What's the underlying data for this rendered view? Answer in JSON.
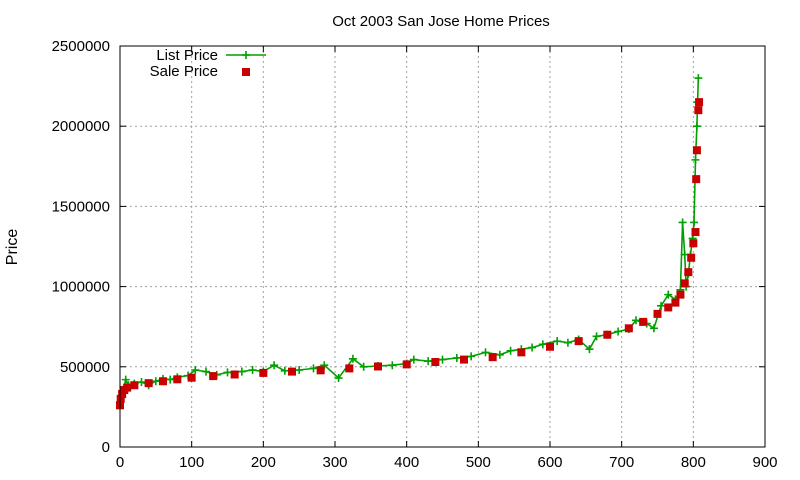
{
  "chart_data": {
    "type": "scatter",
    "title": "Oct 2003 San Jose Home Prices",
    "xlabel": "",
    "ylabel": "Price",
    "xlim": [
      0,
      900
    ],
    "ylim": [
      0,
      2500000
    ],
    "x_ticks": [
      0,
      100,
      200,
      300,
      400,
      500,
      600,
      700,
      800,
      900
    ],
    "y_ticks": [
      0,
      500000,
      1000000,
      1500000,
      2000000,
      2500000
    ],
    "grid": true,
    "legend_position": "top-left",
    "series": [
      {
        "name": "List Price",
        "style": "linespoints",
        "marker": "plus",
        "color": "#00a000",
        "points": [
          [
            0,
            280000
          ],
          [
            2,
            320000
          ],
          [
            5,
            360000
          ],
          [
            8,
            420000
          ],
          [
            12,
            385000
          ],
          [
            20,
            395000
          ],
          [
            30,
            405000
          ],
          [
            40,
            385000
          ],
          [
            50,
            410000
          ],
          [
            60,
            425000
          ],
          [
            70,
            420000
          ],
          [
            80,
            435000
          ],
          [
            95,
            445000
          ],
          [
            105,
            480000
          ],
          [
            120,
            470000
          ],
          [
            135,
            450000
          ],
          [
            150,
            465000
          ],
          [
            170,
            470000
          ],
          [
            185,
            480000
          ],
          [
            200,
            470000
          ],
          [
            215,
            510000
          ],
          [
            230,
            475000
          ],
          [
            250,
            480000
          ],
          [
            270,
            490000
          ],
          [
            285,
            510000
          ],
          [
            305,
            430000
          ],
          [
            325,
            550000
          ],
          [
            340,
            500000
          ],
          [
            360,
            505000
          ],
          [
            380,
            510000
          ],
          [
            400,
            520000
          ],
          [
            410,
            545000
          ],
          [
            430,
            535000
          ],
          [
            450,
            545000
          ],
          [
            470,
            555000
          ],
          [
            490,
            565000
          ],
          [
            510,
            590000
          ],
          [
            530,
            575000
          ],
          [
            545,
            600000
          ],
          [
            560,
            610000
          ],
          [
            575,
            620000
          ],
          [
            590,
            640000
          ],
          [
            610,
            660000
          ],
          [
            625,
            650000
          ],
          [
            640,
            670000
          ],
          [
            655,
            610000
          ],
          [
            665,
            690000
          ],
          [
            680,
            700000
          ],
          [
            695,
            720000
          ],
          [
            710,
            735000
          ],
          [
            720,
            790000
          ],
          [
            735,
            770000
          ],
          [
            745,
            740000
          ],
          [
            755,
            880000
          ],
          [
            765,
            950000
          ],
          [
            775,
            920000
          ],
          [
            782,
            980000
          ],
          [
            785,
            1400000
          ],
          [
            788,
            1200000
          ],
          [
            790,
            1000000
          ],
          [
            793,
            1080000
          ],
          [
            796,
            1200000
          ],
          [
            799,
            1300000
          ],
          [
            801,
            1400000
          ],
          [
            803,
            1790000
          ],
          [
            805,
            2000000
          ],
          [
            806,
            2150000
          ],
          [
            807,
            2300000
          ]
        ]
      },
      {
        "name": "Sale Price",
        "style": "points",
        "marker": "square",
        "color": "#c80000",
        "points": [
          [
            0,
            260000
          ],
          [
            1,
            300000
          ],
          [
            3,
            330000
          ],
          [
            6,
            355000
          ],
          [
            10,
            370000
          ],
          [
            20,
            385000
          ],
          [
            40,
            398000
          ],
          [
            60,
            410000
          ],
          [
            80,
            422000
          ],
          [
            100,
            432000
          ],
          [
            130,
            442000
          ],
          [
            160,
            452000
          ],
          [
            200,
            462000
          ],
          [
            240,
            470000
          ],
          [
            280,
            478000
          ],
          [
            320,
            490000
          ],
          [
            360,
            502000
          ],
          [
            400,
            515000
          ],
          [
            440,
            530000
          ],
          [
            480,
            545000
          ],
          [
            520,
            560000
          ],
          [
            560,
            590000
          ],
          [
            600,
            625000
          ],
          [
            640,
            660000
          ],
          [
            680,
            700000
          ],
          [
            710,
            740000
          ],
          [
            730,
            780000
          ],
          [
            750,
            830000
          ],
          [
            765,
            870000
          ],
          [
            775,
            900000
          ],
          [
            782,
            950000
          ],
          [
            788,
            1020000
          ],
          [
            793,
            1090000
          ],
          [
            797,
            1180000
          ],
          [
            800,
            1270000
          ],
          [
            803,
            1340000
          ],
          [
            804,
            1670000
          ],
          [
            805,
            1850000
          ],
          [
            807,
            2100000
          ],
          [
            808,
            2150000
          ]
        ]
      }
    ]
  }
}
